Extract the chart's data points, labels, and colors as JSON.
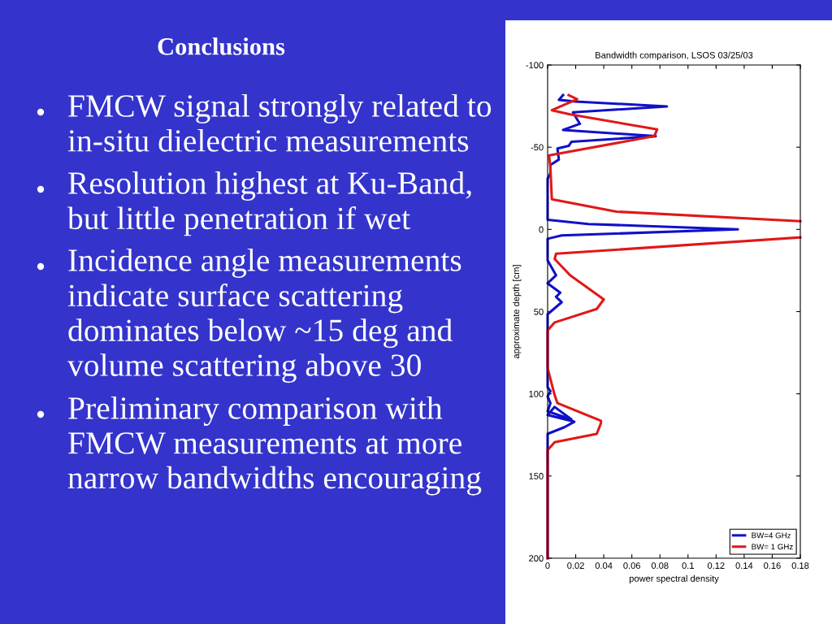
{
  "chart_data": {
    "type": "line",
    "title": "Bandwidth comparison, LSOS 03/25/03",
    "xlabel": "power spectral density",
    "ylabel": "approximate depth [cm]",
    "annotations": [
      "Conclusions",
      "FMCW signal strongly related to\nin-situ dielectric measurements",
      "Resolution highest at Ku-Band,\nbut little penetration if wet",
      "Incidence angle measurements\nindicate surface scattering\ndominates below ~15 deg and\nvolume scattering above 30",
      "Preliminary comparison with\nFMCW measurements at more\nnarrow bandwidths encouraging"
    ],
    "series": [
      {
        "name": "BW=4 GHz",
        "color": "#1010c8",
        "x": [
          0.011,
          0.008,
          0.02,
          0.085,
          0.018,
          0.023,
          0.011,
          0.077,
          0.017,
          0.015,
          0.007,
          0.008,
          0.002,
          0.002,
          0,
          0,
          0.029,
          0.1355,
          0.01,
          0,
          0,
          0.006,
          0,
          0.009,
          0.006,
          0.01,
          0,
          0,
          0.002,
          0,
          0.002,
          0,
          0.017,
          0.005,
          0,
          0.019,
          0.012,
          0,
          0
        ],
        "values": [
          -81.7,
          -78.8,
          -77.8,
          -74.8,
          -71.2,
          -64.2,
          -60.5,
          -56.7,
          -53.3,
          -50.8,
          -49.2,
          -42.5,
          -39.2,
          -34.2,
          -30.8,
          -5.8,
          -3.3,
          0,
          3.7,
          5.7,
          18.9,
          27.9,
          32.8,
          38.5,
          41,
          44.3,
          51.6,
          96,
          98.4,
          101.6,
          105.7,
          110.7,
          115.6,
          108,
          112.9,
          117,
          120.3,
          124.4,
          200
        ]
      },
      {
        "name": "BW= 1 GHz",
        "color": "#e01818",
        "x": [
          0.015,
          0.021,
          0.003,
          0.016,
          0.078,
          0.076,
          0.001,
          0.002,
          0.003,
          0.049,
          0.18,
          null,
          0.18,
          0.006,
          0.005,
          0.016,
          0.04,
          0.035,
          0.005,
          0,
          0,
          0.005,
          0.007,
          0.038,
          0.038,
          0.035,
          0.005,
          0,
          0
        ],
        "values": [
          -81.7,
          -79.2,
          -72.5,
          -70,
          -60.8,
          -56.7,
          -45,
          -37.5,
          -18.3,
          -10.8,
          -5,
          null,
          4.9,
          14.8,
          18,
          27.9,
          42.6,
          48.4,
          56.6,
          61.5,
          84.4,
          100.8,
          105.7,
          116.4,
          117.8,
          124.4,
          129.4,
          134.3,
          200
        ]
      }
    ],
    "xlim": [
      0,
      0.18
    ],
    "xticks": [
      0,
      0.02,
      0.04,
      0.06,
      0.08,
      {
        "value": 0.1,
        "label": "0.1"
      },
      0.12,
      0.14,
      0.16,
      0.18
    ],
    "ylim": [
      200,
      -100
    ],
    "yticks": [
      -100,
      -50,
      0,
      50,
      100,
      150,
      200
    ],
    "grid": false,
    "legend": "bottom right",
    "line_style": "solid",
    "marker": "none"
  }
}
